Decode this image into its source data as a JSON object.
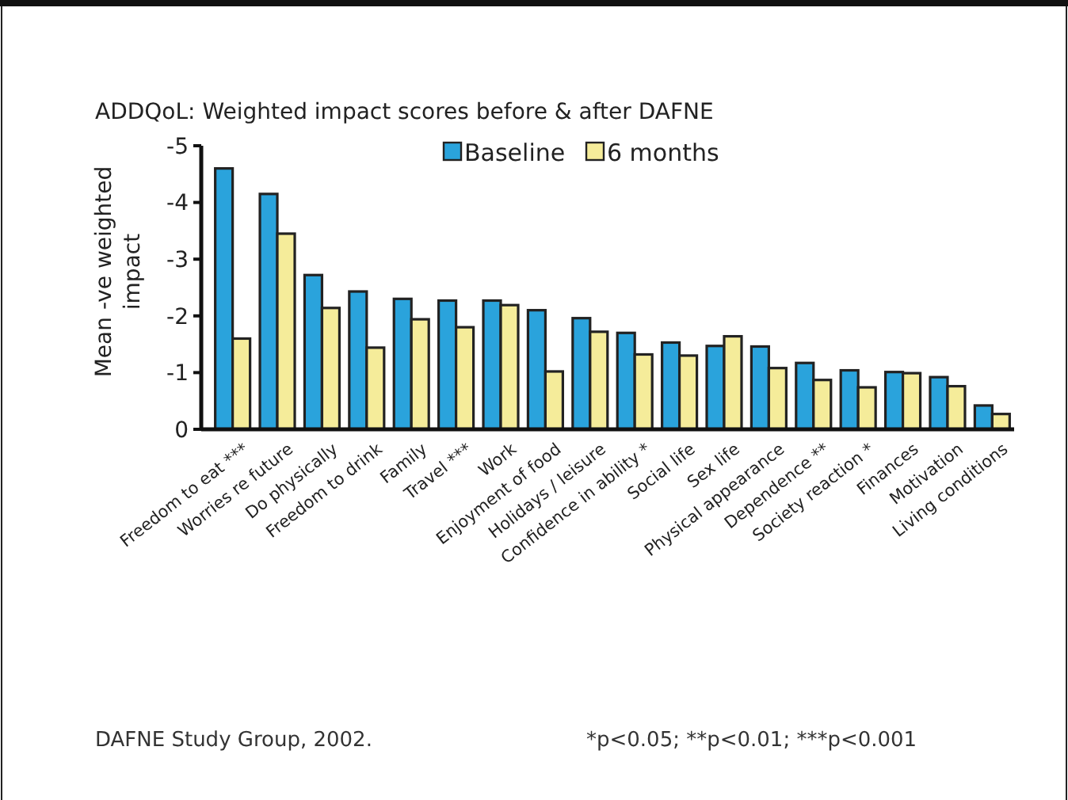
{
  "chart_data": {
    "type": "bar",
    "title": "ADDQoL: Weighted impact scores before & after DAFNE",
    "ylabel": "Mean -ve weighted impact",
    "categories": [
      "Freedom to eat ***",
      "Worries re future",
      "Do physically",
      "Freedom to drink",
      "Family",
      "Travel ***",
      "Work",
      "Enjoyment of food",
      "Holidays / leisure",
      "Confidence in ability *",
      "Social life",
      "Sex life",
      "Physical appearance",
      "Dependence **",
      "Society reaction *",
      "Finances",
      "Motivation",
      "Living conditions"
    ],
    "series": [
      {
        "name": "Baseline",
        "color": "#2aa3dc",
        "values": [
          -4.6,
          -4.15,
          -2.72,
          -2.43,
          -2.3,
          -2.27,
          -2.27,
          -2.1,
          -1.96,
          -1.7,
          -1.53,
          -1.47,
          -1.46,
          -1.17,
          -1.04,
          -1.01,
          -0.92,
          -0.42
        ]
      },
      {
        "name": "6 months",
        "color": "#f5ec9a",
        "values": [
          -1.6,
          -3.45,
          -2.14,
          -1.44,
          -1.94,
          -1.8,
          -2.19,
          -1.02,
          -1.72,
          -1.32,
          -1.3,
          -1.64,
          -1.08,
          -0.87,
          -0.74,
          -0.99,
          -0.76,
          -0.27
        ]
      }
    ],
    "ylim": [
      0,
      -5
    ],
    "yticks": [
      0,
      -1,
      -2,
      -3,
      -4,
      -5
    ],
    "legend": "top",
    "annotations": [
      "DAFNE Study Group, 2002.",
      "*p<0.05; **p<0.01; ***p<0.001"
    ]
  }
}
